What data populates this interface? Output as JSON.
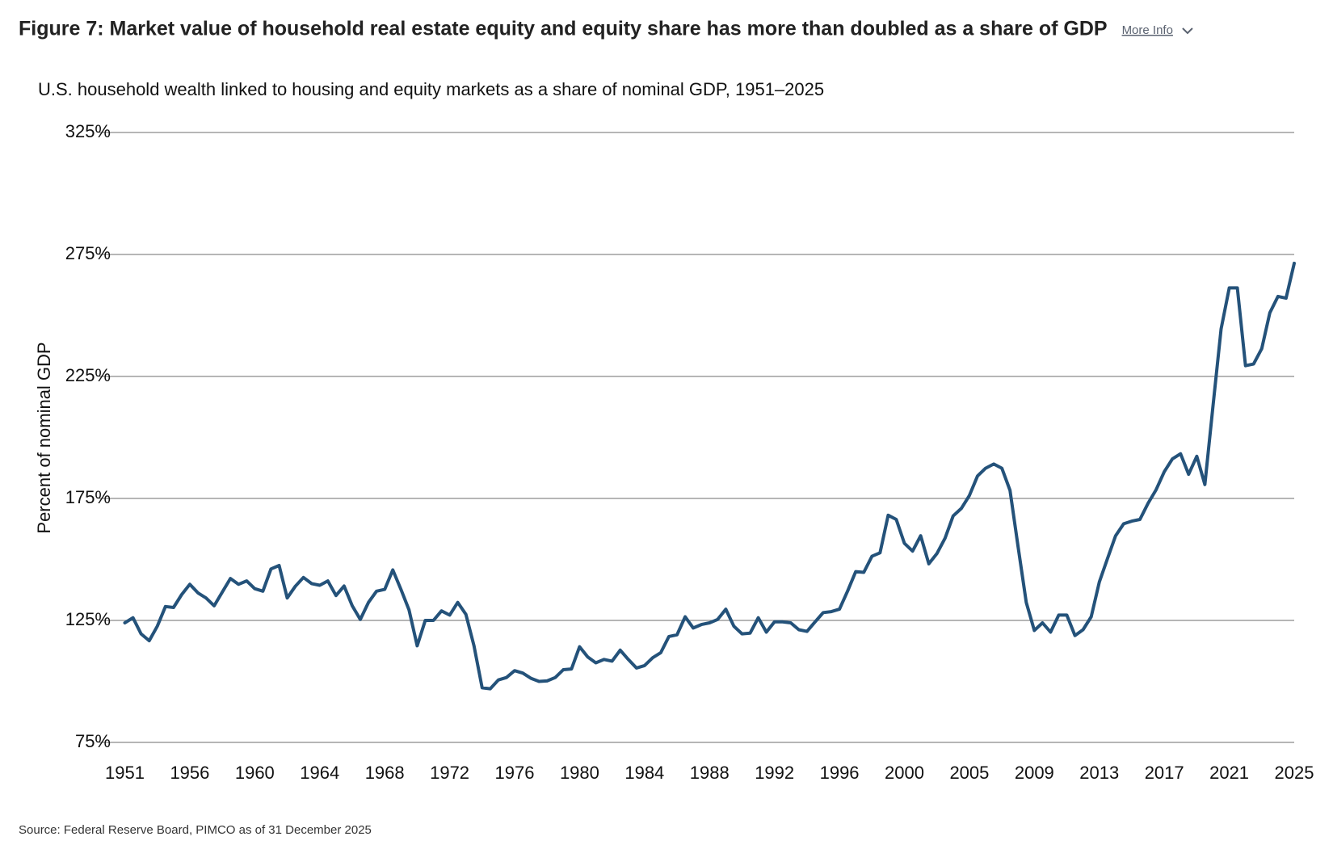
{
  "chart_data": {
    "type": "line",
    "title": "Figure 7: Market value of household real estate equity and equity share has more than doubled as a share of GDP",
    "more_info": "More Info",
    "subtitle": "U.S. household wealth linked to housing and equity markets as a share of nominal GDP, 1951–2025",
    "ylabel": "Percent of nominal GDP",
    "source": "Source: Federal Reserve Board, PIMCO as of 31 December 2025",
    "color": "#24527a",
    "grid": true,
    "ylim": [
      75,
      325
    ],
    "yticks": [
      {
        "value": 75,
        "label": "75%"
      },
      {
        "value": 125,
        "label": "125%"
      },
      {
        "value": 175,
        "label": "175%"
      },
      {
        "value": 225,
        "label": "225%"
      },
      {
        "value": 275,
        "label": "275%"
      },
      {
        "value": 325,
        "label": "325%"
      }
    ],
    "categories": [
      "1951",
      null,
      null,
      null,
      null,
      null,
      null,
      null,
      "1956",
      null,
      null,
      null,
      null,
      null,
      null,
      null,
      "1960",
      null,
      null,
      null,
      null,
      null,
      null,
      null,
      "1964",
      null,
      null,
      null,
      null,
      null,
      null,
      null,
      "1968",
      null,
      null,
      null,
      null,
      null,
      null,
      null,
      "1972",
      null,
      null,
      null,
      null,
      null,
      null,
      null,
      "1976",
      null,
      null,
      null,
      null,
      null,
      null,
      null,
      "1980",
      null,
      null,
      null,
      null,
      null,
      null,
      null,
      "1984",
      null,
      null,
      null,
      null,
      null,
      null,
      null,
      "1988",
      null,
      null,
      null,
      null,
      null,
      null,
      null,
      "1992",
      null,
      null,
      null,
      null,
      null,
      null,
      null,
      "1996",
      null,
      null,
      null,
      null,
      null,
      null,
      null,
      "2000",
      null,
      null,
      null,
      null,
      null,
      null,
      null,
      "2005",
      null,
      null,
      null,
      null,
      null,
      null,
      null,
      "2009",
      null,
      null,
      null,
      null,
      null,
      null,
      null,
      "2013",
      null,
      null,
      null,
      null,
      null,
      null,
      null,
      "2017",
      null,
      null,
      null,
      null,
      null,
      null,
      null,
      "2021",
      null,
      null,
      null,
      null,
      null,
      null,
      null,
      "2025"
    ],
    "values": [
      124.0,
      126.1,
      119.5,
      116.7,
      122.6,
      130.7,
      130.3,
      135.6,
      139.8,
      136.3,
      134.2,
      131.0,
      136.6,
      142.2,
      139.8,
      141.2,
      138.0,
      137.0,
      146.1,
      147.5,
      134.2,
      139.0,
      142.6,
      140.1,
      139.4,
      141.2,
      135.2,
      139.1,
      131.0,
      125.4,
      132.4,
      137.0,
      137.7,
      145.7,
      137.7,
      129.3,
      114.6,
      125.0,
      125.0,
      128.9,
      127.2,
      132.4,
      127.5,
      114.6,
      97.4,
      97.0,
      100.6,
      101.6,
      104.4,
      103.4,
      101.3,
      100.0,
      100.2,
      101.6,
      104.8,
      105.1,
      114.2,
      110.0,
      107.6,
      109.0,
      108.3,
      112.8,
      109.0,
      105.5,
      106.5,
      109.7,
      111.8,
      118.4,
      119.1,
      126.5,
      121.9,
      123.3,
      124.0,
      125.4,
      129.6,
      122.6,
      119.5,
      119.8,
      126.1,
      120.2,
      124.4,
      124.4,
      124.0,
      121.2,
      120.5,
      124.4,
      128.2,
      128.6,
      129.6,
      137.0,
      145.0,
      144.7,
      151.3,
      152.7,
      168.1,
      166.4,
      156.6,
      153.4,
      159.7,
      148.2,
      152.4,
      158.7,
      167.8,
      170.9,
      176.2,
      184.2,
      187.4,
      189.1,
      187.4,
      178.3,
      155.2,
      132.4,
      120.9,
      124.0,
      120.2,
      127.2,
      127.2,
      118.8,
      121.2,
      126.5,
      140.8,
      150.3,
      159.7,
      164.6,
      165.7,
      166.4,
      173.0,
      178.6,
      186.0,
      191.2,
      193.3,
      184.9,
      192.3,
      180.7,
      213.0,
      244.5,
      261.3,
      261.3,
      229.4,
      230.1,
      236.4,
      251.1,
      257.8,
      257.1,
      271.4
    ]
  }
}
